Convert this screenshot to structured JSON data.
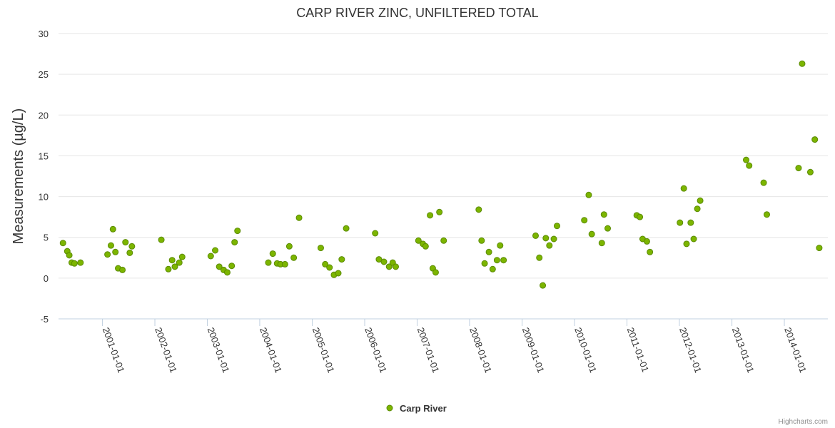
{
  "chart_data": {
    "type": "scatter",
    "title": "CARP RIVER ZINC, UNFILTERED TOTAL",
    "xlabel": "",
    "ylabel": "Measurements (µg/L)",
    "ylim": [
      -5,
      30
    ],
    "yticks": [
      -5,
      0,
      5,
      10,
      15,
      20,
      25,
      30
    ],
    "xlim": [
      "2000-03-01",
      "2014-10-31"
    ],
    "xticks": [
      "2001-01-01",
      "2002-01-01",
      "2003-01-01",
      "2004-01-01",
      "2005-01-01",
      "2006-01-01",
      "2007-01-01",
      "2008-01-01",
      "2009-01-01",
      "2010-01-01",
      "2011-01-01",
      "2012-01-01",
      "2013-01-01",
      "2014-01-01"
    ],
    "grid": true,
    "legend_position": "bottom-center",
    "series": [
      {
        "name": "Carp River",
        "color": "#7cb500",
        "points": [
          [
            "2000-04-01",
            4.3
          ],
          [
            "2000-05-01",
            3.3
          ],
          [
            "2000-05-15",
            2.8
          ],
          [
            "2000-06-01",
            1.9
          ],
          [
            "2000-06-20",
            1.8
          ],
          [
            "2000-08-01",
            1.9
          ],
          [
            "2001-02-05",
            2.9
          ],
          [
            "2001-03-01",
            4.0
          ],
          [
            "2001-03-15",
            6.0
          ],
          [
            "2001-04-01",
            3.2
          ],
          [
            "2001-04-20",
            1.2
          ],
          [
            "2001-05-20",
            1.0
          ],
          [
            "2001-06-10",
            4.4
          ],
          [
            "2001-07-10",
            3.1
          ],
          [
            "2001-07-25",
            3.9
          ],
          [
            "2002-02-15",
            4.7
          ],
          [
            "2002-04-05",
            1.1
          ],
          [
            "2002-05-01",
            2.2
          ],
          [
            "2002-05-20",
            1.4
          ],
          [
            "2002-06-20",
            1.9
          ],
          [
            "2002-07-10",
            2.6
          ],
          [
            "2003-01-25",
            2.7
          ],
          [
            "2003-02-25",
            3.4
          ],
          [
            "2003-03-25",
            1.4
          ],
          [
            "2003-04-25",
            1.0
          ],
          [
            "2003-05-20",
            0.7
          ],
          [
            "2003-06-20",
            1.5
          ],
          [
            "2003-07-10",
            4.4
          ],
          [
            "2003-07-30",
            5.8
          ],
          [
            "2004-03-01",
            1.9
          ],
          [
            "2004-04-01",
            3.0
          ],
          [
            "2004-05-01",
            1.8
          ],
          [
            "2004-05-25",
            1.7
          ],
          [
            "2004-06-25",
            1.7
          ],
          [
            "2004-07-25",
            3.9
          ],
          [
            "2004-08-25",
            2.5
          ],
          [
            "2004-10-01",
            7.4
          ],
          [
            "2005-03-01",
            3.7
          ],
          [
            "2005-04-01",
            1.7
          ],
          [
            "2005-05-01",
            1.3
          ],
          [
            "2005-06-01",
            0.4
          ],
          [
            "2005-07-01",
            0.6
          ],
          [
            "2005-07-25",
            2.3
          ],
          [
            "2005-08-25",
            6.1
          ],
          [
            "2006-03-15",
            5.5
          ],
          [
            "2006-04-10",
            2.3
          ],
          [
            "2006-05-15",
            2.0
          ],
          [
            "2006-06-20",
            1.4
          ],
          [
            "2006-07-15",
            1.9
          ],
          [
            "2006-08-05",
            1.4
          ],
          [
            "2007-01-10",
            4.6
          ],
          [
            "2007-02-10",
            4.2
          ],
          [
            "2007-03-01",
            3.9
          ],
          [
            "2007-04-01",
            7.7
          ],
          [
            "2007-04-20",
            1.2
          ],
          [
            "2007-05-10",
            0.7
          ],
          [
            "2007-06-05",
            8.1
          ],
          [
            "2007-07-05",
            4.6
          ],
          [
            "2008-03-05",
            8.4
          ],
          [
            "2008-03-25",
            4.6
          ],
          [
            "2008-04-15",
            1.8
          ],
          [
            "2008-05-15",
            3.2
          ],
          [
            "2008-06-10",
            1.1
          ],
          [
            "2008-07-10",
            2.2
          ],
          [
            "2008-08-01",
            4.0
          ],
          [
            "2008-08-25",
            2.2
          ],
          [
            "2009-04-05",
            5.2
          ],
          [
            "2009-05-01",
            2.5
          ],
          [
            "2009-05-25",
            -0.9
          ],
          [
            "2009-06-15",
            4.9
          ],
          [
            "2009-07-10",
            4.0
          ],
          [
            "2009-08-10",
            4.8
          ],
          [
            "2009-09-01",
            6.4
          ],
          [
            "2010-03-10",
            7.1
          ],
          [
            "2010-04-10",
            10.2
          ],
          [
            "2010-05-01",
            5.4
          ],
          [
            "2010-07-10",
            4.3
          ],
          [
            "2010-07-25",
            7.8
          ],
          [
            "2010-08-20",
            6.1
          ],
          [
            "2011-03-10",
            7.7
          ],
          [
            "2011-04-01",
            7.5
          ],
          [
            "2011-04-20",
            4.8
          ],
          [
            "2011-05-20",
            4.5
          ],
          [
            "2011-06-10",
            3.2
          ],
          [
            "2012-01-05",
            6.8
          ],
          [
            "2012-02-01",
            11.0
          ],
          [
            "2012-02-20",
            4.2
          ],
          [
            "2012-03-20",
            6.8
          ],
          [
            "2012-04-10",
            4.8
          ],
          [
            "2012-05-05",
            8.5
          ],
          [
            "2012-05-25",
            9.5
          ],
          [
            "2013-04-10",
            14.5
          ],
          [
            "2013-05-01",
            13.8
          ],
          [
            "2013-08-10",
            11.7
          ],
          [
            "2013-09-01",
            7.8
          ],
          [
            "2014-04-10",
            13.5
          ],
          [
            "2014-05-05",
            26.3
          ],
          [
            "2014-07-01",
            13.0
          ],
          [
            "2014-08-01",
            17.0
          ],
          [
            "2014-09-01",
            3.7
          ]
        ]
      }
    ]
  },
  "legend": {
    "series_name": "Carp River"
  },
  "credits": "Highcharts.com"
}
